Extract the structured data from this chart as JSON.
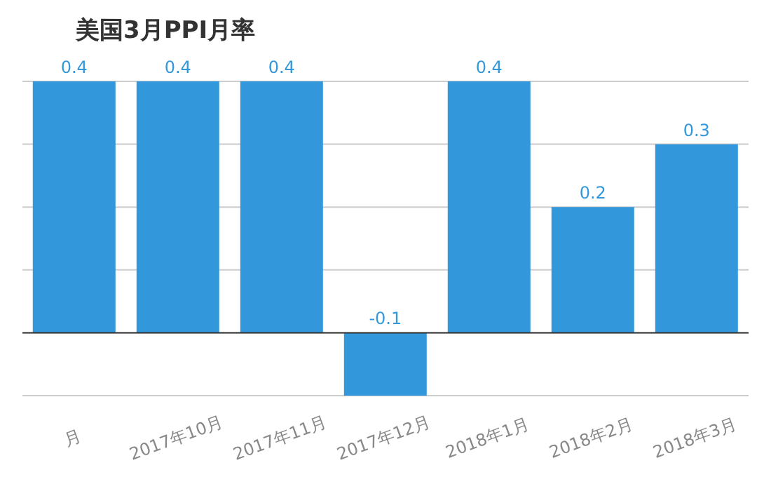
{
  "chart_data": {
    "type": "bar",
    "title": "美国3月PPI月率",
    "categories": [
      "月",
      "2017年10月",
      "2017年11月",
      "2017年12月",
      "2018年1月",
      "2018年2月",
      "2018年3月"
    ],
    "values": [
      0.4,
      0.4,
      0.4,
      -0.1,
      0.4,
      0.2,
      0.3
    ],
    "color": "#3398db",
    "ylim": [
      -0.1,
      0.4
    ],
    "yticks": [
      -0.1,
      0,
      0.1,
      0.2,
      0.3,
      0.4
    ],
    "grid": "y",
    "tick_labels": "x",
    "data_labels": true,
    "legend": false,
    "ref_lines": [
      {
        "axis": "y",
        "value": 0,
        "color": "#333333"
      }
    ]
  }
}
